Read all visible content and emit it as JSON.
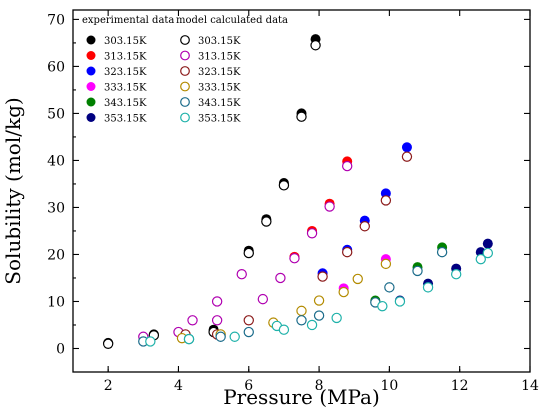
{
  "chart_data": {
    "type": "scatter",
    "xlabel": "Pressure (MPa)",
    "ylabel": "Solubility (mol/kg)",
    "xlim": [
      1,
      14
    ],
    "ylim": [
      -5,
      72
    ],
    "xticks": [
      2,
      4,
      6,
      8,
      10,
      12,
      14
    ],
    "yticks": [
      0,
      10,
      20,
      30,
      40,
      50,
      60,
      70
    ],
    "grid": false,
    "legend": {
      "placement": "top-left",
      "experimental_header": "experimental data",
      "model_header": "model calculated data"
    },
    "series": [
      {
        "name": "303.15K",
        "group": "experimental data",
        "marker": "filled",
        "color": "#000000",
        "x": [
          2.0,
          3.3,
          5.0,
          6.0,
          6.5,
          7.0,
          7.5,
          7.9
        ],
        "y": [
          1.2,
          3.0,
          4.0,
          20.8,
          27.5,
          35.2,
          50.0,
          65.8
        ]
      },
      {
        "name": "313.15K",
        "group": "experimental data",
        "marker": "filled",
        "color": "#ff0000",
        "x": [
          7.3,
          7.8,
          8.3,
          8.8
        ],
        "y": [
          19.5,
          25.0,
          30.8,
          39.8
        ]
      },
      {
        "name": "323.15K",
        "group": "experimental data",
        "marker": "filled",
        "color": "#0000ff",
        "x": [
          8.1,
          8.8,
          9.3,
          9.9,
          10.5
        ],
        "y": [
          16.0,
          21.0,
          27.2,
          33.0,
          42.8
        ]
      },
      {
        "name": "333.15K",
        "group": "experimental data",
        "marker": "filled",
        "color": "#ff00ff",
        "x": [
          8.7,
          9.9
        ],
        "y": [
          12.8,
          19.0
        ]
      },
      {
        "name": "343.15K",
        "group": "experimental data",
        "marker": "filled",
        "color": "#008000",
        "x": [
          9.6,
          10.8,
          11.5
        ],
        "y": [
          10.2,
          17.3,
          21.5
        ]
      },
      {
        "name": "353.15K",
        "group": "experimental data",
        "marker": "filled",
        "color": "#000080",
        "x": [
          10.3,
          11.1,
          11.9,
          12.6,
          12.8
        ],
        "y": [
          10.2,
          13.8,
          17.0,
          20.5,
          22.3
        ]
      },
      {
        "name": "303.15K",
        "group": "model calculated data",
        "marker": "open",
        "color": "#000000",
        "x": [
          2.0,
          3.3,
          5.0,
          6.0,
          6.5,
          7.0,
          7.5,
          7.9
        ],
        "y": [
          1.0,
          2.8,
          3.5,
          20.3,
          27.0,
          34.7,
          49.3,
          64.5
        ]
      },
      {
        "name": "313.15K",
        "group": "model calculated data",
        "marker": "open",
        "color": "#b000b0",
        "x": [
          3.0,
          4.0,
          4.4,
          5.1,
          5.1,
          5.8,
          6.4,
          6.9,
          7.3,
          7.8,
          8.3,
          8.8
        ],
        "y": [
          2.5,
          3.5,
          6.0,
          6.0,
          10.0,
          15.8,
          10.5,
          15.0,
          19.2,
          24.5,
          30.2,
          38.8
        ]
      },
      {
        "name": "323.15K",
        "group": "model calculated data",
        "marker": "open",
        "color": "#8b1a1a",
        "x": [
          4.2,
          5.1,
          6.0,
          8.1,
          8.8,
          9.3,
          9.9,
          10.5
        ],
        "y": [
          3.0,
          3.0,
          6.0,
          15.3,
          20.5,
          26.0,
          31.5,
          40.8
        ]
      },
      {
        "name": "333.15K",
        "group": "model calculated data",
        "marker": "open",
        "color": "#b38b00",
        "x": [
          4.1,
          5.2,
          6.7,
          7.5,
          8.0,
          8.7,
          9.1,
          9.9
        ],
        "y": [
          2.2,
          3.0,
          5.5,
          8.0,
          10.2,
          12.0,
          14.8,
          18.0
        ]
      },
      {
        "name": "343.15K",
        "group": "model calculated data",
        "marker": "open",
        "color": "#1a6b8a",
        "x": [
          3.0,
          4.3,
          5.2,
          6.0,
          7.5,
          8.0,
          9.6,
          10.0,
          10.8,
          11.5
        ],
        "y": [
          1.5,
          2.0,
          2.5,
          3.5,
          6.0,
          7.0,
          9.8,
          13.0,
          16.5,
          20.5
        ]
      },
      {
        "name": "353.15K",
        "group": "model calculated data",
        "marker": "open",
        "color": "#20b2aa",
        "x": [
          3.2,
          4.3,
          5.6,
          6.8,
          7.0,
          7.8,
          8.5,
          9.8,
          10.3,
          11.1,
          11.9,
          12.6,
          12.8
        ],
        "y": [
          1.5,
          2.0,
          2.5,
          4.8,
          4.0,
          5.0,
          6.5,
          9.0,
          10.0,
          13.0,
          15.8,
          19.0,
          20.3
        ]
      }
    ]
  }
}
